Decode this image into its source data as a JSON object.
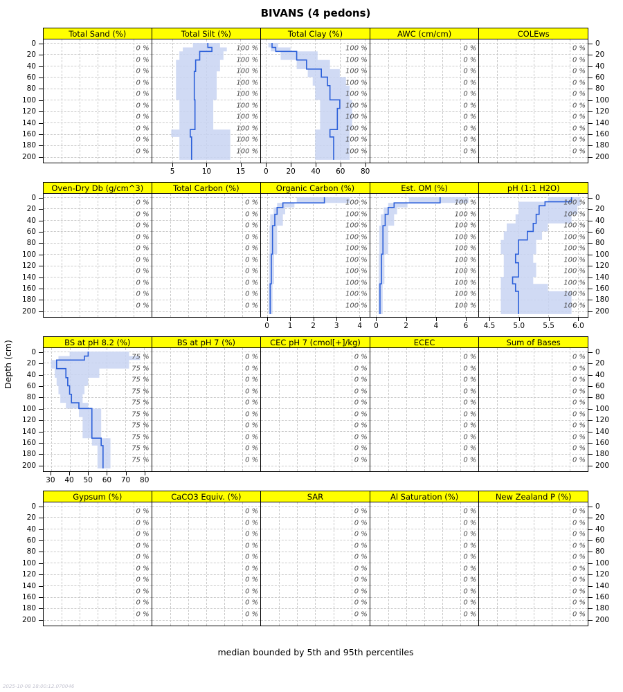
{
  "title": "BIVANS (4 pedons)",
  "ylabel": "Depth (cm)",
  "caption": "median bounded by 5th and 95th percentiles",
  "timestamp": "2025-10-08 18:00:12.070046",
  "colors": {
    "strip_bg": "#ffff00",
    "line": "#2b5fd9",
    "band": "#c8d4f2",
    "grid": "#c9c9c9"
  },
  "chart_data": {
    "type": "line",
    "orientation": "depth-profile",
    "ylabel": "Depth (cm)",
    "ylim": [
      -6,
      210
    ],
    "depth_ticks": [
      0,
      20,
      40,
      60,
      80,
      100,
      120,
      140,
      160,
      180,
      200
    ],
    "label_depths": [
      10,
      30,
      50,
      70,
      90,
      110,
      130,
      150,
      170,
      190
    ],
    "band_meaning": "5th to 95th percentile around median",
    "rows": [
      {
        "panels": [
          {
            "name": "Total Sand (%)",
            "pct": "0 %"
          },
          {
            "name": "Total Silt (%)",
            "pct": "100 %",
            "xlim": [
              2,
              18
            ],
            "ticks": [
              5,
              10,
              15
            ],
            "tick_labels": [
              "5",
              "10",
              "15"
            ],
            "horizons": [
              [
                0,
                8,
                10.2,
                8.0,
                12.0
              ],
              [
                8,
                15,
                10.8,
                6.5,
                13.0
              ],
              [
                15,
                30,
                9.0,
                6.0,
                12.5
              ],
              [
                30,
                50,
                8.4,
                5.5,
                12.0
              ],
              [
                50,
                100,
                8.2,
                5.5,
                11.5
              ],
              [
                100,
                152,
                8.3,
                6.0,
                11.0
              ],
              [
                152,
                165,
                7.6,
                4.8,
                13.5
              ],
              [
                165,
                205,
                7.8,
                6.0,
                13.5
              ]
            ]
          },
          {
            "name": "Total Clay (%)",
            "pct": "100 %",
            "xlim": [
              -4,
              84
            ],
            "ticks": [
              0,
              20,
              40,
              60,
              80
            ],
            "tick_labels": [
              "0",
              "20",
              "40",
              "60",
              "80"
            ],
            "horizons": [
              [
                0,
                8,
                5,
                2,
                10
              ],
              [
                8,
                15,
                8,
                4,
                20
              ],
              [
                15,
                30,
                25,
                12,
                42
              ],
              [
                30,
                46,
                33,
                25,
                52
              ],
              [
                46,
                60,
                45,
                34,
                60
              ],
              [
                60,
                75,
                50,
                38,
                65
              ],
              [
                75,
                100,
                52,
                40,
                68
              ],
              [
                100,
                115,
                60,
                44,
                70
              ],
              [
                115,
                152,
                58,
                44,
                70
              ],
              [
                152,
                165,
                52,
                40,
                68
              ],
              [
                165,
                205,
                55,
                40,
                68
              ]
            ]
          },
          {
            "name": "AWC (cm/cm)",
            "pct": "0 %"
          },
          {
            "name": "COLEws",
            "pct": "0 %"
          }
        ]
      },
      {
        "panels": [
          {
            "name": "Oven-Dry Db (g/cm^3)",
            "pct": "0 %"
          },
          {
            "name": "Total Carbon (%)",
            "pct": "0 %"
          },
          {
            "name": "Organic Carbon (%)",
            "pct": "100 %",
            "xlim": [
              -0.25,
              4.45
            ],
            "ticks": [
              0,
              1,
              2,
              3,
              4
            ],
            "tick_labels": [
              "0",
              "1",
              "2",
              "3",
              "4"
            ],
            "horizons": [
              [
                0,
                10,
                2.5,
                1.3,
                3.6
              ],
              [
                10,
                18,
                0.7,
                0.45,
                1.2
              ],
              [
                18,
                30,
                0.45,
                0.3,
                0.8
              ],
              [
                30,
                50,
                0.35,
                0.15,
                0.7
              ],
              [
                50,
                100,
                0.25,
                0.12,
                0.45
              ],
              [
                100,
                152,
                0.2,
                0.1,
                0.32
              ],
              [
                152,
                205,
                0.15,
                0.08,
                0.25
              ]
            ]
          },
          {
            "name": "Est. OM (%)",
            "pct": "100 %",
            "xlim": [
              -0.4,
              6.9
            ],
            "ticks": [
              0,
              2,
              4,
              6
            ],
            "tick_labels": [
              "0",
              "2",
              "4",
              "6"
            ],
            "horizons": [
              [
                0,
                10,
                4.3,
                2.2,
                6.2
              ],
              [
                10,
                18,
                1.2,
                0.8,
                2.1
              ],
              [
                18,
                30,
                0.8,
                0.5,
                1.4
              ],
              [
                30,
                50,
                0.6,
                0.3,
                1.2
              ],
              [
                50,
                100,
                0.45,
                0.2,
                0.8
              ],
              [
                100,
                152,
                0.35,
                0.17,
                0.55
              ],
              [
                152,
                205,
                0.25,
                0.14,
                0.43
              ]
            ]
          },
          {
            "name": "pH (1:1 H2O)",
            "pct": "100 %",
            "xlim": [
              4.33,
              6.17
            ],
            "ticks": [
              4.5,
              5.0,
              5.5,
              6.0
            ],
            "tick_labels": [
              "4.5",
              "5.0",
              "5.5",
              "6.0"
            ],
            "horizons": [
              [
                0,
                8,
                5.9,
                5.5,
                6.05
              ],
              [
                8,
                15,
                5.45,
                5.0,
                6.05
              ],
              [
                15,
                30,
                5.35,
                5.0,
                6.0
              ],
              [
                30,
                46,
                5.3,
                4.95,
                5.9
              ],
              [
                46,
                60,
                5.25,
                4.8,
                5.5
              ],
              [
                60,
                75,
                5.15,
                4.75,
                5.4
              ],
              [
                75,
                100,
                5.0,
                4.7,
                5.3
              ],
              [
                100,
                115,
                4.95,
                4.75,
                5.25
              ],
              [
                115,
                140,
                5.0,
                4.75,
                5.3
              ],
              [
                140,
                152,
                4.9,
                4.7,
                5.25
              ],
              [
                152,
                165,
                4.95,
                4.7,
                5.5
              ],
              [
                165,
                205,
                5.0,
                4.7,
                5.9
              ]
            ]
          }
        ]
      },
      {
        "panels": [
          {
            "name": "BS at pH 8.2 (%)",
            "pct": "75 %",
            "xlim": [
              26,
              84
            ],
            "ticks": [
              30,
              40,
              50,
              60,
              70,
              80
            ],
            "tick_labels": [
              "30",
              "40",
              "50",
              "60",
              "70",
              "80"
            ],
            "horizons": [
              [
                0,
                8,
                50,
                40,
                72
              ],
              [
                8,
                15,
                48,
                34,
                78
              ],
              [
                15,
                30,
                33,
                30,
                72
              ],
              [
                30,
                46,
                38,
                32,
                56
              ],
              [
                46,
                60,
                39,
                33,
                50
              ],
              [
                60,
                75,
                40,
                34,
                48
              ],
              [
                75,
                90,
                41,
                35,
                47
              ],
              [
                90,
                100,
                45,
                38,
                50
              ],
              [
                100,
                115,
                52,
                45,
                57
              ],
              [
                115,
                152,
                52,
                47,
                57
              ],
              [
                152,
                165,
                57,
                52,
                62
              ],
              [
                165,
                205,
                58,
                55,
                62
              ]
            ]
          },
          {
            "name": "BS at pH 7 (%)",
            "pct": "0 %"
          },
          {
            "name": "CEC pH 7 (cmol[+]/kg)",
            "pct": "0 %"
          },
          {
            "name": "ECEC",
            "pct": "0 %"
          },
          {
            "name": "Sum of Bases",
            "pct": "0 %"
          }
        ]
      },
      {
        "panels": [
          {
            "name": "Gypsum (%)",
            "pct": "0 %"
          },
          {
            "name": "CaCO3 Equiv. (%)",
            "pct": "0 %"
          },
          {
            "name": "SAR",
            "pct": "0 %"
          },
          {
            "name": "Al Saturation (%)",
            "pct": "0 %"
          },
          {
            "name": "New Zealand P (%)",
            "pct": "0 %"
          }
        ]
      }
    ]
  }
}
